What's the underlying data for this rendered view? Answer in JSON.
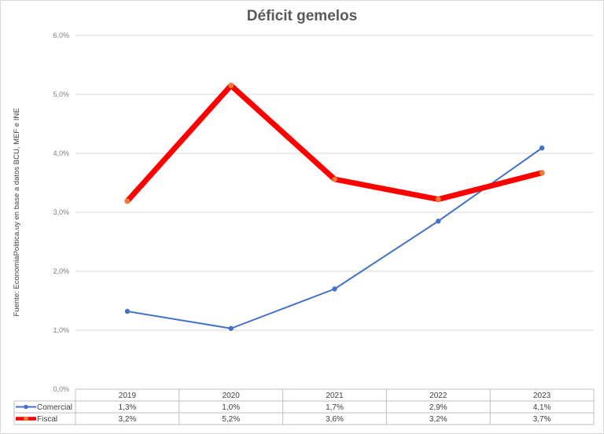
{
  "chart_data": {
    "type": "line",
    "title": "Déficit gemelos",
    "source_note": "Fuente: EconomiaPolitica.uy en base a datos BCU, MEF e INE",
    "categories": [
      "2019",
      "2020",
      "2021",
      "2022",
      "2023"
    ],
    "ylim": [
      0,
      6
    ],
    "y_ticks": [
      0,
      1,
      2,
      3,
      4,
      5,
      6
    ],
    "y_tick_labels": [
      "0,0%",
      "1,0%",
      "2,0%",
      "3,0%",
      "4,0%",
      "5,0%",
      "6,0%"
    ],
    "grid": true,
    "legend_placement": "data-table",
    "series": [
      {
        "name": "Comercial",
        "color": "#4472c4",
        "marker_color": "#4472c4",
        "values": [
          1.32,
          1.03,
          1.7,
          2.85,
          4.09
        ],
        "labels": [
          "1,3%",
          "1,0%",
          "1,7%",
          "2,9%",
          "4,1%"
        ]
      },
      {
        "name": "Fiscal",
        "color": "#ff0000",
        "marker_color": "#ed7d31",
        "values": [
          3.19,
          5.15,
          3.56,
          3.22,
          3.67
        ],
        "labels": [
          "3,2%",
          "5,2%",
          "3,6%",
          "3,2%",
          "3,7%"
        ]
      }
    ]
  }
}
